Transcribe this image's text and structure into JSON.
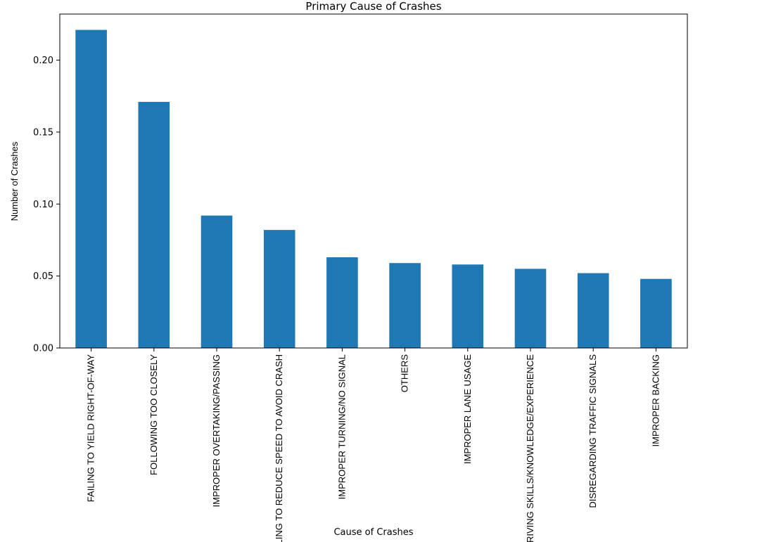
{
  "chart_data": {
    "type": "bar",
    "title": "Primary Cause of Crashes",
    "xlabel": "Cause of Crashes",
    "ylabel": "Number of Crashes",
    "categories": [
      "FAILING TO YIELD RIGHT-OF-WAY",
      "FOLLOWING TOO CLOSELY",
      "IMPROPER OVERTAKING/PASSING",
      "FAILING TO REDUCE SPEED TO AVOID CRASH",
      "IMPROPER TURNING/NO SIGNAL",
      "OTHERS",
      "IMPROPER LANE USAGE",
      "DRIVING SKILLS/KNOWLEDGE/EXPERIENCE",
      "DISREGARDING TRAFFIC SIGNALS",
      "IMPROPER BACKING"
    ],
    "values": [
      0.221,
      0.171,
      0.092,
      0.082,
      0.063,
      0.059,
      0.058,
      0.055,
      0.052,
      0.048
    ],
    "ylim": [
      0,
      0.232
    ],
    "yticks": [
      "0.00",
      "0.05",
      "0.10",
      "0.15",
      "0.20"
    ],
    "bar_color": "#1f77b4",
    "grid": false,
    "legend": "none"
  }
}
